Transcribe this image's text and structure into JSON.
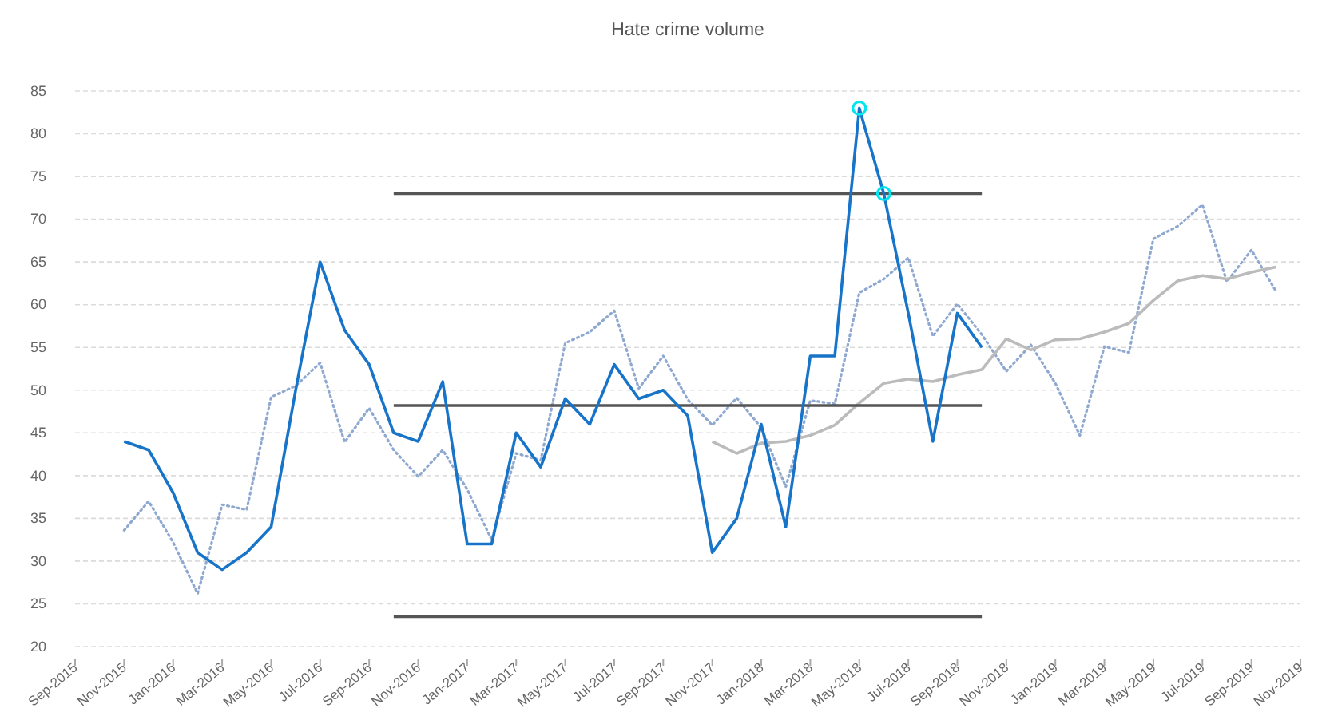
{
  "chart_data": {
    "type": "line",
    "title": "Hate crime volume",
    "categories": [
      "Sep-2015",
      null,
      "Nov-2015",
      null,
      "Jan-2016",
      null,
      "Mar-2016",
      null,
      "May-2016",
      null,
      "Jul-2016",
      null,
      "Sep-2016",
      null,
      "Nov-2016",
      null,
      "Jan-2017",
      null,
      "Mar-2017",
      null,
      "May-2017",
      null,
      "Jul-2017",
      null,
      "Sep-2017",
      null,
      "Nov-2017",
      null,
      "Jan-2018",
      null,
      "Mar-2018",
      null,
      "May-2018",
      null,
      "Jul-2018",
      null,
      "Sep-2018",
      null,
      "Nov-2018",
      null,
      "Jan-2019",
      null,
      "Mar-2019",
      null,
      "May-2019",
      null,
      "Jul-2019",
      null,
      "Sep-2019",
      null,
      "Nov-2019"
    ],
    "ylim": [
      20,
      85
    ],
    "yticks": [
      20,
      25,
      30,
      35,
      40,
      45,
      50,
      55,
      60,
      65,
      70,
      75,
      80,
      85
    ],
    "grid": "y",
    "series": [
      {
        "color": "#8fa8d0",
        "line_style": "dotted",
        "marker": "none",
        "values": [
          null,
          null,
          33.6,
          37,
          32.2,
          26.2,
          36.6,
          36,
          49.2,
          50.5,
          53.2,
          43.9,
          47.9,
          43,
          39.9,
          43,
          38.4,
          32.5,
          42.6,
          41.8,
          55.5,
          56.8,
          59.3,
          50.2,
          54,
          48.9,
          45.9,
          49.1,
          45.6,
          38.7,
          48.8,
          48.4,
          61.4,
          63,
          65.5,
          56.3,
          60.1,
          56.5,
          52.2,
          55.3,
          50.8,
          44.7,
          55.1,
          54.4,
          67.7,
          69.2,
          71.7,
          62.7,
          66.4,
          61.6,
          null
        ]
      },
      {
        "color": "#bbbbbb",
        "line_style": "solid",
        "marker": "none",
        "values": [
          null,
          null,
          null,
          null,
          null,
          null,
          null,
          null,
          null,
          null,
          null,
          null,
          null,
          null,
          null,
          null,
          null,
          null,
          null,
          null,
          null,
          null,
          null,
          null,
          null,
          null,
          44,
          42.6,
          43.8,
          44,
          44.7,
          45.9,
          48.5,
          50.8,
          51.3,
          51,
          51.8,
          52.4,
          56,
          54.7,
          55.9,
          56,
          56.8,
          57.8,
          60.5,
          62.8,
          63.4,
          63,
          63.8,
          64.4,
          null
        ]
      },
      {
        "type": "line",
        "color": "#555555",
        "line_style": "solid",
        "marker": "none",
        "values": [
          null,
          null,
          null,
          null,
          null,
          null,
          null,
          null,
          null,
          null,
          null,
          null,
          null,
          73,
          73,
          73,
          73,
          73,
          73,
          73,
          73,
          73,
          73,
          73,
          73,
          73,
          73,
          73,
          73,
          73,
          73,
          73,
          73,
          73,
          73,
          73,
          73,
          73,
          null,
          null,
          null,
          null,
          null,
          null,
          null,
          null,
          null,
          null,
          null,
          null,
          null
        ]
      },
      {
        "type": "line",
        "color": "#555555",
        "line_style": "solid",
        "marker": "none",
        "values": [
          null,
          null,
          null,
          null,
          null,
          null,
          null,
          null,
          null,
          null,
          null,
          null,
          null,
          48.2,
          48.2,
          48.2,
          48.2,
          48.2,
          48.2,
          48.2,
          48.2,
          48.2,
          48.2,
          48.2,
          48.2,
          48.2,
          48.2,
          48.2,
          48.2,
          48.2,
          48.2,
          48.2,
          48.2,
          48.2,
          48.2,
          48.2,
          48.2,
          48.2,
          null,
          null,
          null,
          null,
          null,
          null,
          null,
          null,
          null,
          null,
          null,
          null,
          null
        ]
      },
      {
        "type": "line",
        "color": "#555555",
        "line_style": "solid",
        "marker": "none",
        "values": [
          null,
          null,
          null,
          null,
          null,
          null,
          null,
          null,
          null,
          null,
          null,
          null,
          null,
          23.5,
          23.5,
          23.5,
          23.5,
          23.5,
          23.5,
          23.5,
          23.5,
          23.5,
          23.5,
          23.5,
          23.5,
          23.5,
          23.5,
          23.5,
          23.5,
          23.5,
          23.5,
          23.5,
          23.5,
          23.5,
          23.5,
          23.5,
          23.5,
          23.5,
          null,
          null,
          null,
          null,
          null,
          null,
          null,
          null,
          null,
          null,
          null,
          null,
          null
        ]
      },
      {
        "color": "#1874c8",
        "line_style": "solid",
        "marker": "none",
        "values": [
          null,
          null,
          44,
          43,
          38,
          31,
          29,
          31,
          34,
          50,
          65,
          57,
          53,
          45,
          44,
          51,
          32,
          32,
          45,
          41,
          49,
          46,
          53,
          49,
          50,
          47,
          31,
          35,
          46,
          34,
          54,
          54,
          83,
          73,
          59,
          44,
          59,
          55,
          null,
          null,
          null,
          null,
          null,
          null,
          null,
          null,
          null,
          null,
          null,
          null,
          null
        ]
      },
      {
        "type": "scatter",
        "color": "#00e5ee",
        "marker": "circle",
        "values": [
          null,
          null,
          null,
          null,
          null,
          null,
          null,
          null,
          null,
          null,
          null,
          null,
          null,
          null,
          null,
          null,
          null,
          null,
          null,
          null,
          null,
          null,
          null,
          null,
          null,
          null,
          null,
          null,
          null,
          null,
          null,
          null,
          83,
          73,
          null,
          null,
          null,
          null,
          null,
          null,
          null,
          null,
          null,
          null,
          null,
          null,
          null,
          null,
          null,
          null,
          null
        ]
      }
    ]
  }
}
